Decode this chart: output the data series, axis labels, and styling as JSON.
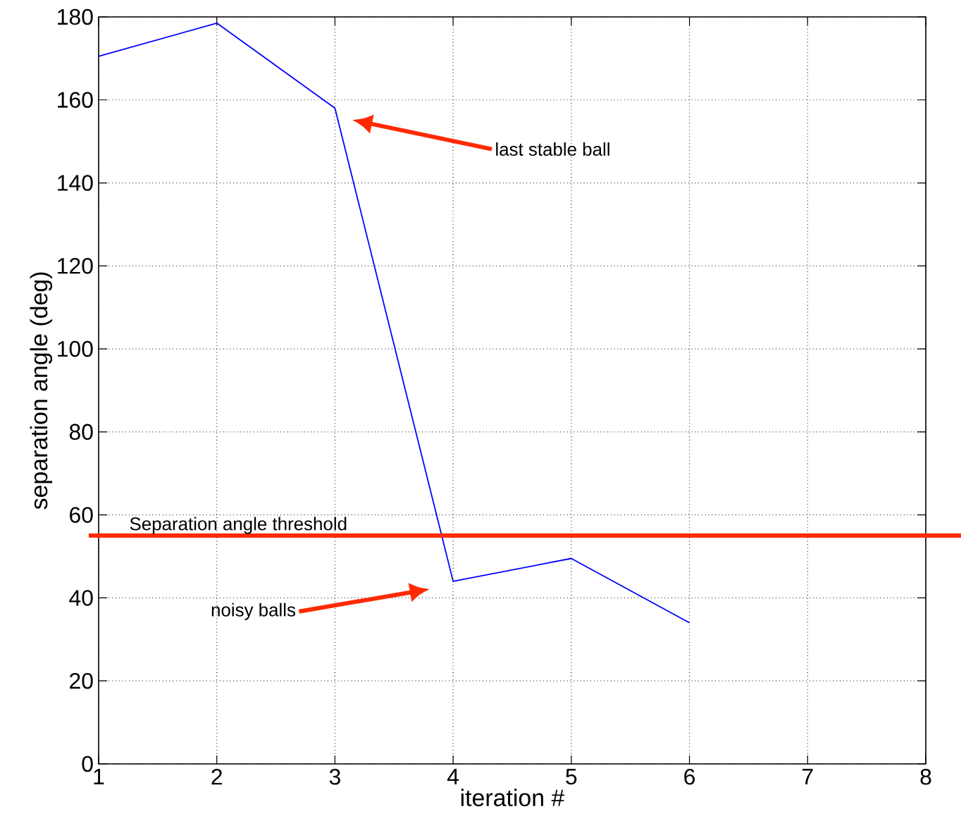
{
  "chart_data": {
    "type": "line",
    "xlabel": "iteration #",
    "ylabel": "separation angle (deg)",
    "x": [
      1,
      2,
      3,
      4,
      5,
      6
    ],
    "series": [
      {
        "color": "#0000ff",
        "values": [
          170.5,
          178.5,
          158,
          44,
          49.5,
          34
        ]
      }
    ],
    "xlim": [
      1,
      8
    ],
    "ylim": [
      0,
      180
    ],
    "xticks": [
      1,
      2,
      3,
      4,
      5,
      6,
      7,
      8
    ],
    "yticks": [
      0,
      20,
      40,
      60,
      80,
      100,
      120,
      140,
      160,
      180
    ],
    "grid": true,
    "marker": "none",
    "line_style": "solid",
    "ref_lines": [
      {
        "axis": "y",
        "value": 55,
        "label": "Separation angle threshold",
        "color": "#ff2a00"
      }
    ],
    "annotations": [
      "last stable ball",
      "noisy balls"
    ]
  }
}
